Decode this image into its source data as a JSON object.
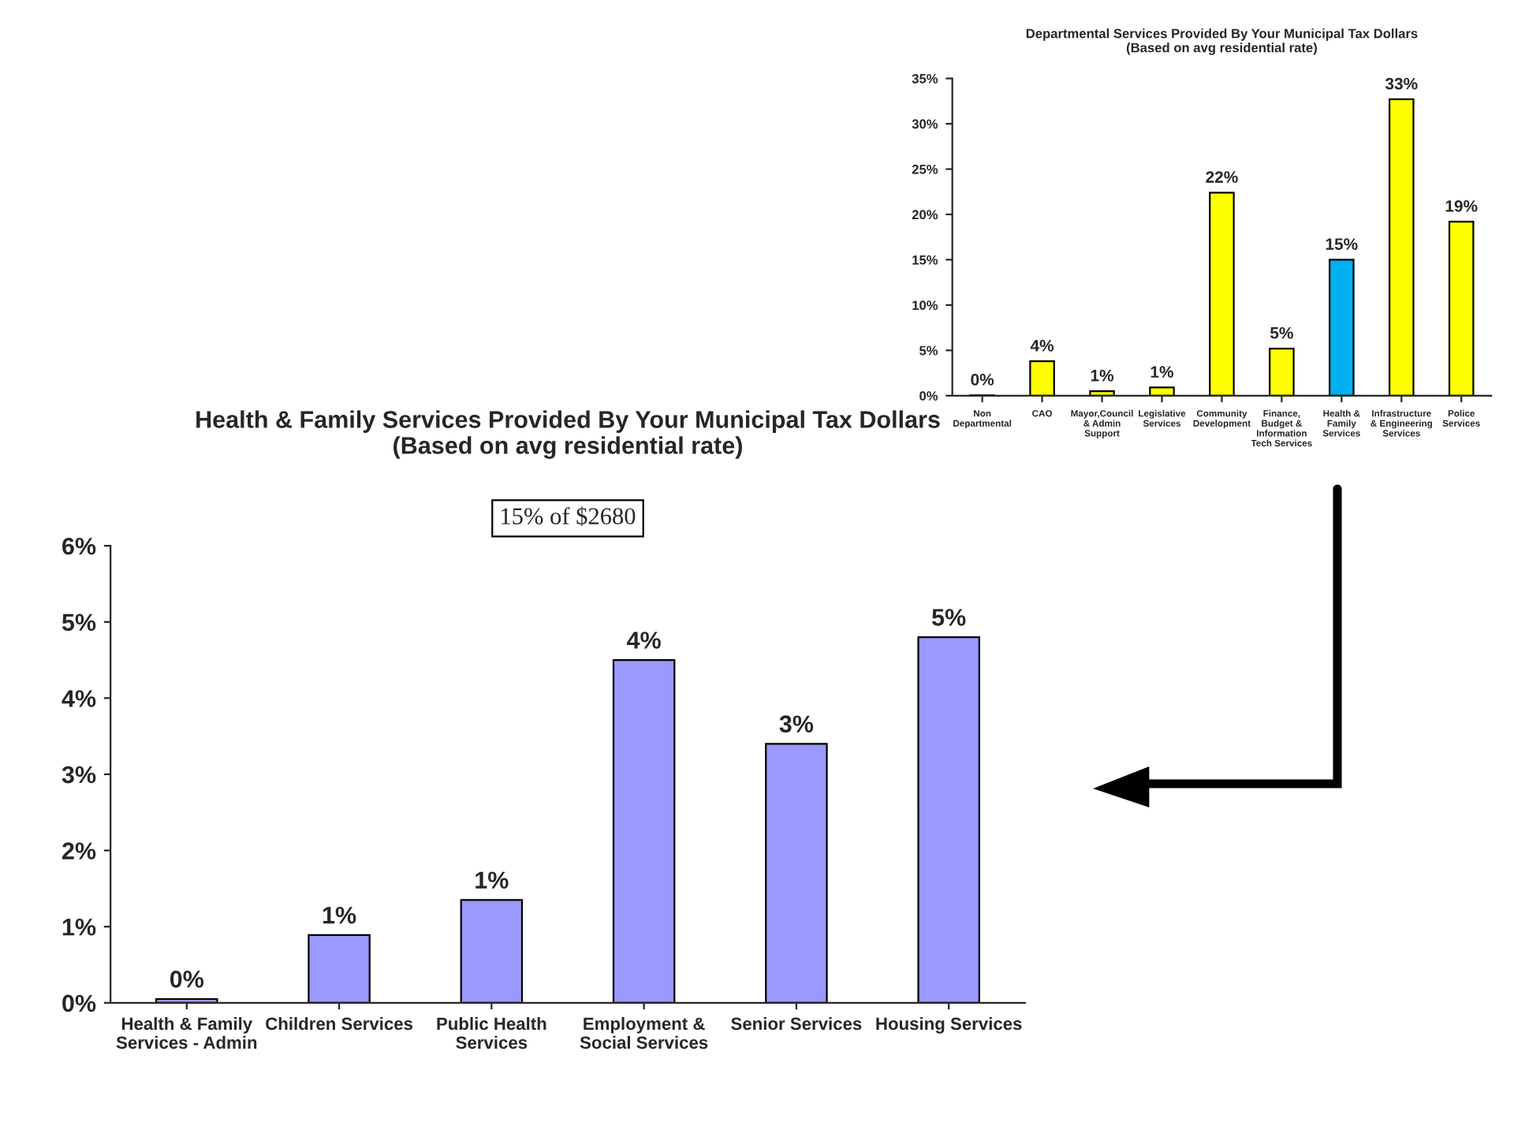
{
  "chart_data": [
    {
      "type": "bar",
      "title": "Departmental Services Provided By Your Municipal Tax Dollars\n(Based on avg residential rate)",
      "categories": [
        "Non\nDepartmental",
        "CAO",
        "Mayor,Council\n& Admin\nSupport",
        "Legislative\nServices",
        "Community\nDevelopment",
        "Finance,\nBudget &\nInformation\nTech Services",
        "Health &\nFamily\nServices",
        "Infrastructure\n& Engineering\nServices",
        "Police\nServices"
      ],
      "values": [
        0.05,
        3.8,
        0.5,
        0.9,
        22.4,
        5.2,
        15.0,
        32.7,
        19.2
      ],
      "colors": [
        "#ffff00",
        "#ffff00",
        "#ffff00",
        "#ffff00",
        "#ffff00",
        "#ffff00",
        "#00b0f0",
        "#ffff00",
        "#ffff00"
      ],
      "value_labels": [
        "0%",
        "4%",
        "1%",
        "1%",
        "22%",
        "5%",
        "15%",
        "33%",
        "19%"
      ],
      "ylim": [
        0,
        35
      ],
      "yticks": [
        {
          "value": 0,
          "label": "0%"
        },
        {
          "value": 5,
          "label": "5%"
        },
        {
          "value": 10,
          "label": "10%"
        },
        {
          "value": 15,
          "label": "15%"
        },
        {
          "value": 20,
          "label": "20%"
        },
        {
          "value": 25,
          "label": "25%"
        },
        {
          "value": 30,
          "label": "30%"
        },
        {
          "value": 35,
          "label": "35%"
        }
      ],
      "grid": false,
      "legend": false
    },
    {
      "type": "bar",
      "title": "Health & Family Services Provided By Your Municipal Tax Dollars\n(Based on avg residential rate)",
      "annotations": [
        "15% of $2680"
      ],
      "categories": [
        "Health & Family\nServices - Admin",
        "Children Services",
        "Public Health\nServices",
        "Employment &\nSocial Services",
        "Senior Services",
        "Housing Services"
      ],
      "values": [
        0.05,
        0.89,
        1.35,
        4.5,
        3.4,
        4.8
      ],
      "color": "#9999ff",
      "value_labels": [
        "0%",
        "1%",
        "1%",
        "4%",
        "3%",
        "5%"
      ],
      "ylim": [
        0,
        6
      ],
      "yticks": [
        {
          "value": 0,
          "label": "0%"
        },
        {
          "value": 1,
          "label": "1%"
        },
        {
          "value": 2,
          "label": "2%"
        },
        {
          "value": 3,
          "label": "3%"
        },
        {
          "value": 4,
          "label": "4%"
        },
        {
          "value": 5,
          "label": "5%"
        },
        {
          "value": 6,
          "label": "6%"
        }
      ],
      "grid": false,
      "legend": false
    }
  ]
}
